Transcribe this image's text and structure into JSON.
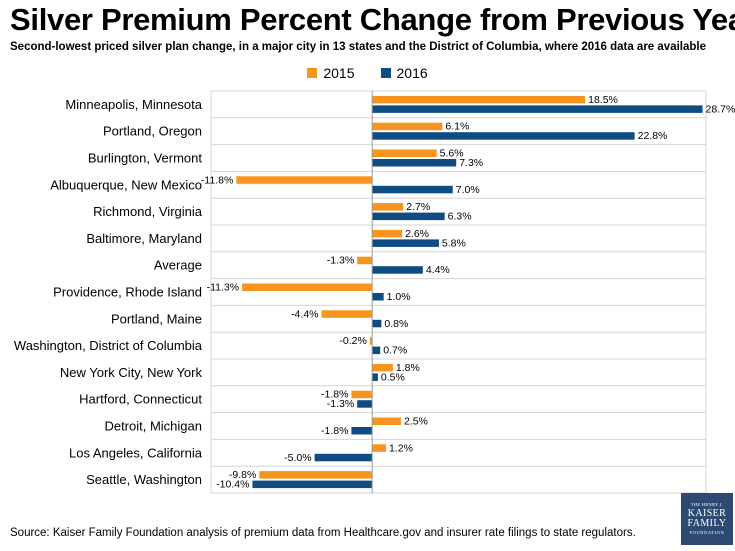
{
  "chart_data": {
    "type": "bar",
    "orientation": "horizontal",
    "title": "Silver Premium Percent Change from Previous Year",
    "subtitle": "Second-lowest priced silver plan change, in a major city in 13 states and the District of Columbia, where 2016 data are available",
    "categories": [
      "Minneapolis, Minnesota",
      "Portland, Oregon",
      "Burlington, Vermont",
      "Albuquerque, New Mexico",
      "Richmond, Virginia",
      "Baltimore, Maryland",
      "Average",
      "Providence, Rhode Island",
      "Portland, Maine",
      "Washington, District of Columbia",
      "New York City, New York",
      "Hartford, Connecticut",
      "Detroit, Michigan",
      "Los Angeles, California",
      "Seattle, Washington"
    ],
    "series": [
      {
        "name": "2015",
        "color": "#f7941d",
        "values": [
          18.5,
          6.1,
          5.6,
          -11.8,
          2.7,
          2.6,
          -1.3,
          -11.3,
          -4.4,
          -0.2,
          1.8,
          -1.8,
          2.5,
          1.2,
          -9.8
        ],
        "labels": [
          "18.5%",
          "6.1%",
          "5.6%",
          "-11.8%",
          "2.7%",
          "2.6%",
          "-1.3%",
          "-11.3%",
          "-4.4%",
          "-0.2%",
          "1.8%",
          "-1.8%",
          "2.5%",
          "1.2%",
          "-9.8%"
        ]
      },
      {
        "name": "2016",
        "color": "#0f4c81",
        "values": [
          28.7,
          22.8,
          7.3,
          7.0,
          6.3,
          5.8,
          4.4,
          1.0,
          0.8,
          0.7,
          0.5,
          -1.3,
          -1.8,
          -5.0,
          -10.4
        ],
        "labels": [
          "28.7%",
          "22.8%",
          "7.3%",
          "7.0%",
          "6.3%",
          "5.8%",
          "4.4%",
          "1.0%",
          "0.8%",
          "0.7%",
          "0.5%",
          "-1.3%",
          "-1.8%",
          "-5.0%",
          "-10.4%"
        ]
      }
    ],
    "xlim": [
      -14,
      29
    ],
    "grid": "horizontal row separators",
    "legend_position": "top"
  },
  "source": "Source: Kaiser Family Foundation analysis of premium data from Healthcare.gov and insurer rate filings to state regulators.",
  "logo": {
    "line1": "THE HENRY J.",
    "line2": "KAISER",
    "line3": "FAMILY",
    "line4": "FOUNDATION"
  }
}
